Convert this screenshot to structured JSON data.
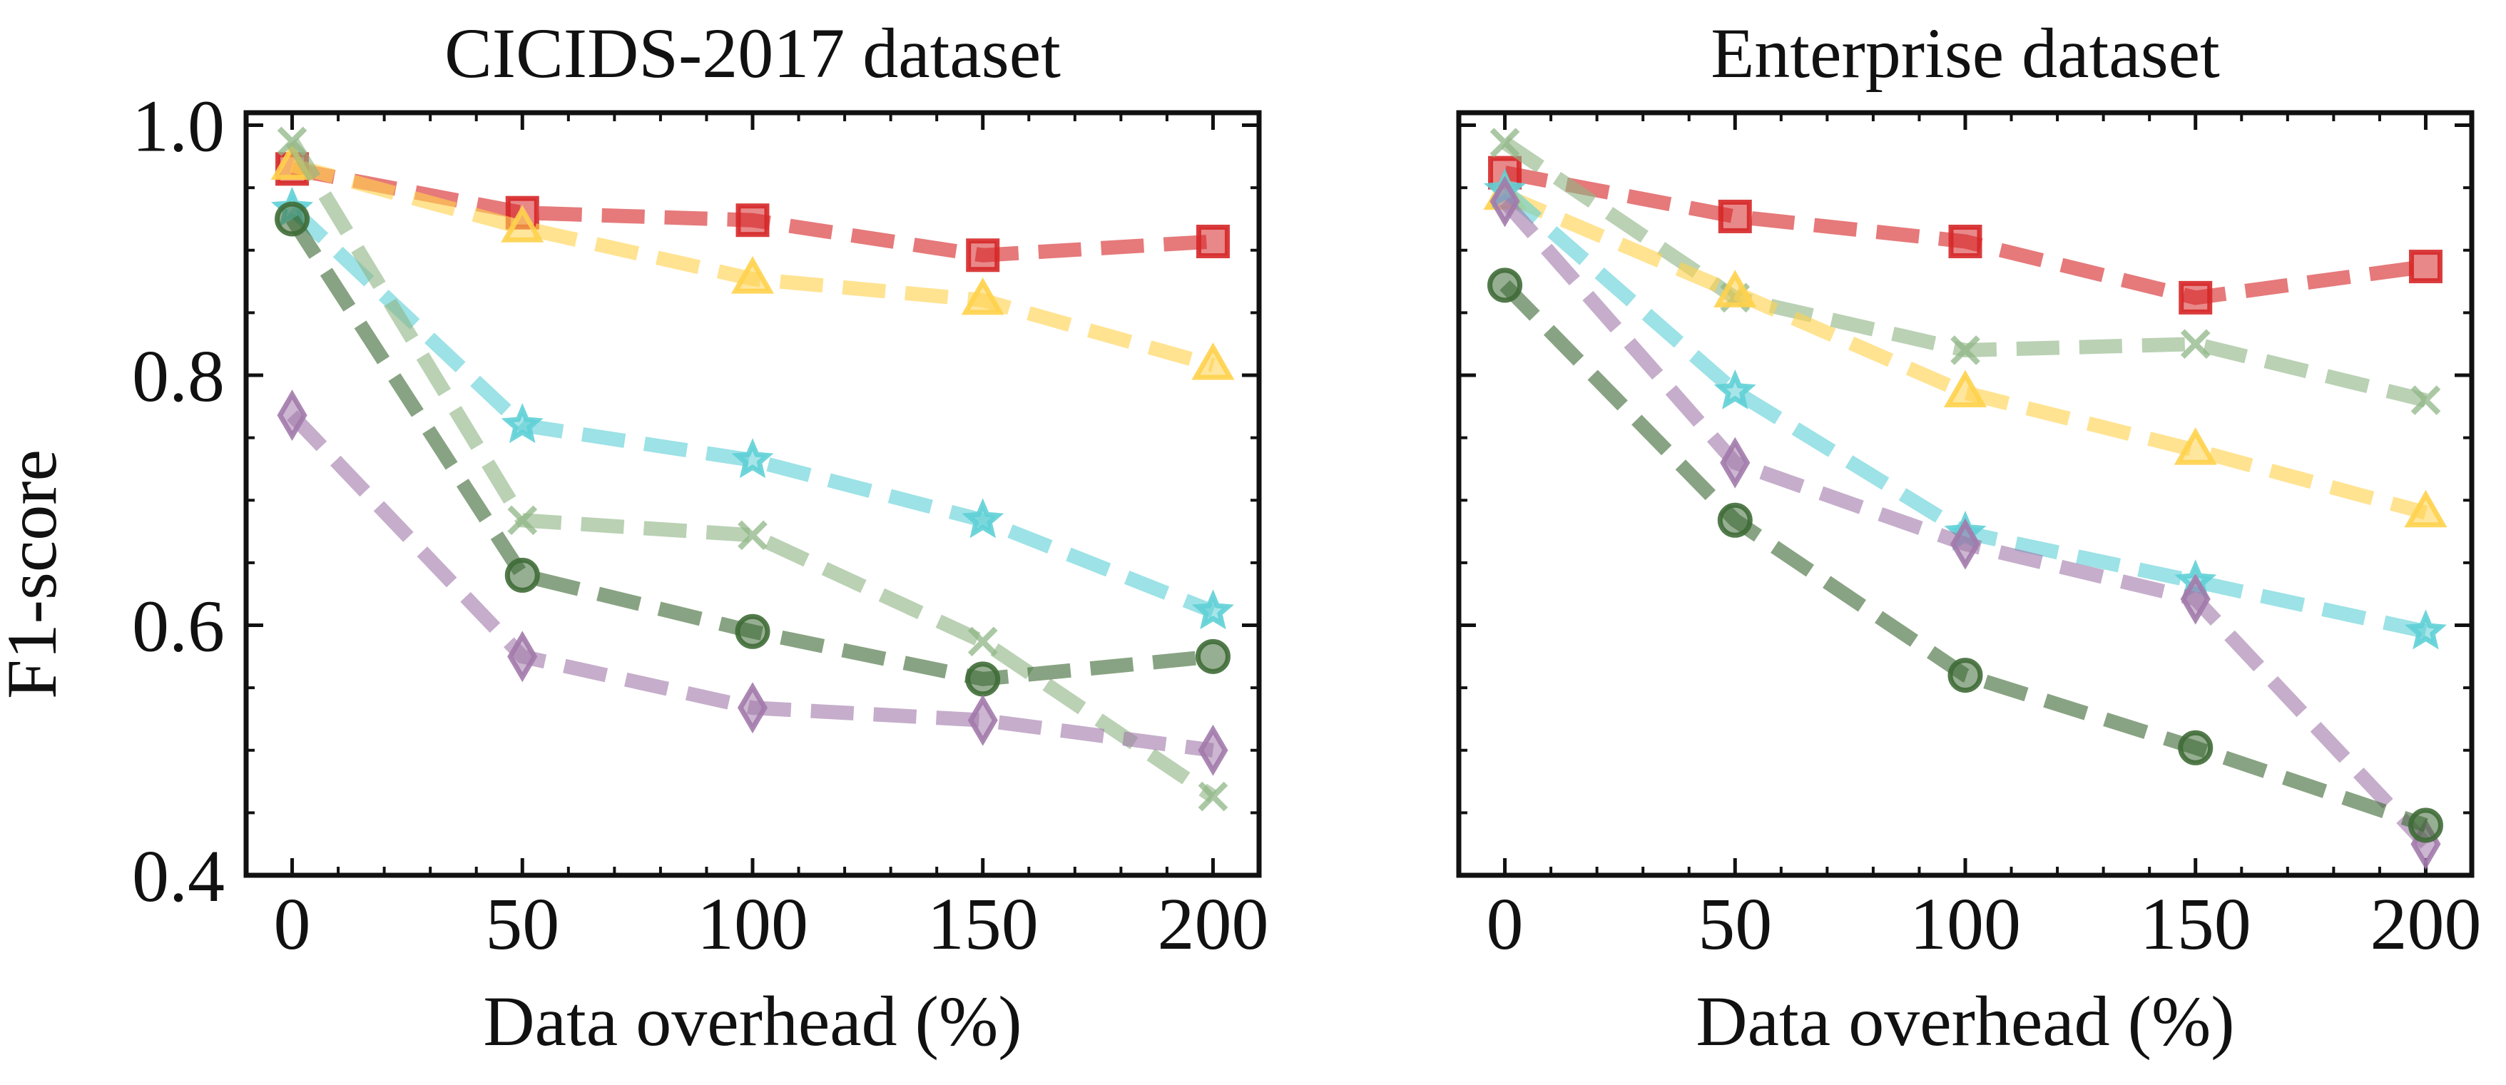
{
  "chart_data": [
    {
      "type": "line",
      "title": "CICIDS-2017 dataset",
      "xlabel": "Data overhead (%)",
      "ylabel": "F1-score",
      "x": [
        0,
        50,
        100,
        150,
        200
      ],
      "xlim": [
        -10,
        210
      ],
      "ylim": [
        0.4,
        1.01
      ],
      "xticks": [
        "0",
        "50",
        "100",
        "150",
        "200"
      ],
      "yticks": [
        "0.4",
        "0.6",
        "0.8",
        "1.0"
      ],
      "grid": false,
      "series": [
        {
          "color": "#d62728",
          "marker": "square",
          "values": [
            0.965,
            0.93,
            0.924,
            0.896,
            0.907
          ]
        },
        {
          "color": "#ffd24d",
          "marker": "triangle",
          "values": [
            0.968,
            0.918,
            0.877,
            0.86,
            0.808
          ]
        },
        {
          "color": "#5fd0d6",
          "marker": "star",
          "values": [
            0.933,
            0.76,
            0.732,
            0.684,
            0.611
          ]
        },
        {
          "color": "#8fb586",
          "marker": "x",
          "values": [
            0.987,
            0.684,
            0.672,
            0.587,
            0.463
          ]
        },
        {
          "color": "#3f6b37",
          "marker": "circle",
          "values": [
            0.925,
            0.64,
            0.595,
            0.557,
            0.575
          ]
        },
        {
          "color": "#a27aab",
          "marker": "diamond",
          "values": [
            0.768,
            0.575,
            0.534,
            0.524,
            0.5
          ]
        }
      ]
    },
    {
      "type": "line",
      "title": "Enterprise dataset",
      "xlabel": "Data overhead (%)",
      "ylabel": "",
      "x": [
        0,
        50,
        100,
        150,
        200
      ],
      "xlim": [
        -10,
        210
      ],
      "ylim": [
        0.4,
        1.01
      ],
      "xticks": [
        "0",
        "50",
        "100",
        "150",
        "200"
      ],
      "yticks": [],
      "grid": false,
      "series": [
        {
          "color": "#d62728",
          "marker": "square",
          "values": [
            0.962,
            0.927,
            0.907,
            0.862,
            0.887
          ]
        },
        {
          "color": "#8fb586",
          "marker": "x",
          "values": [
            0.986,
            0.862,
            0.82,
            0.825,
            0.78
          ]
        },
        {
          "color": "#ffd24d",
          "marker": "triangle",
          "values": [
            0.944,
            0.866,
            0.786,
            0.74,
            0.69
          ]
        },
        {
          "color": "#5fd0d6",
          "marker": "star",
          "values": [
            0.948,
            0.787,
            0.674,
            0.635,
            0.595
          ]
        },
        {
          "color": "#a27aab",
          "marker": "diamond",
          "values": [
            0.939,
            0.73,
            0.665,
            0.621,
            0.425
          ]
        },
        {
          "color": "#3f6b37",
          "marker": "circle",
          "values": [
            0.872,
            0.684,
            0.56,
            0.502,
            0.44
          ]
        }
      ]
    }
  ]
}
